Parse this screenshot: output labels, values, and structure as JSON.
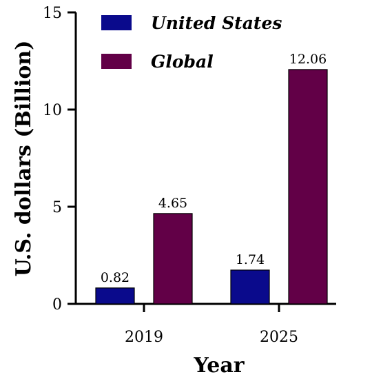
{
  "chart_data": {
    "type": "bar",
    "categories": [
      "2019",
      "2025"
    ],
    "series": [
      {
        "name": "United States",
        "values": [
          0.82,
          1.74
        ],
        "color": "#0a0a8c"
      },
      {
        "name": "Global",
        "values": [
          4.65,
          12.06
        ],
        "color": "#620047"
      }
    ],
    "data_labels": [
      [
        "0.82",
        "1.74"
      ],
      [
        "4.65",
        "12.06"
      ]
    ],
    "xlabel": "Year",
    "ylabel": "U.S. dollars (Billion)",
    "ylim": [
      0,
      15
    ],
    "yticks": [
      0,
      5,
      10,
      15
    ],
    "legend": "top-left",
    "grid": false
  }
}
